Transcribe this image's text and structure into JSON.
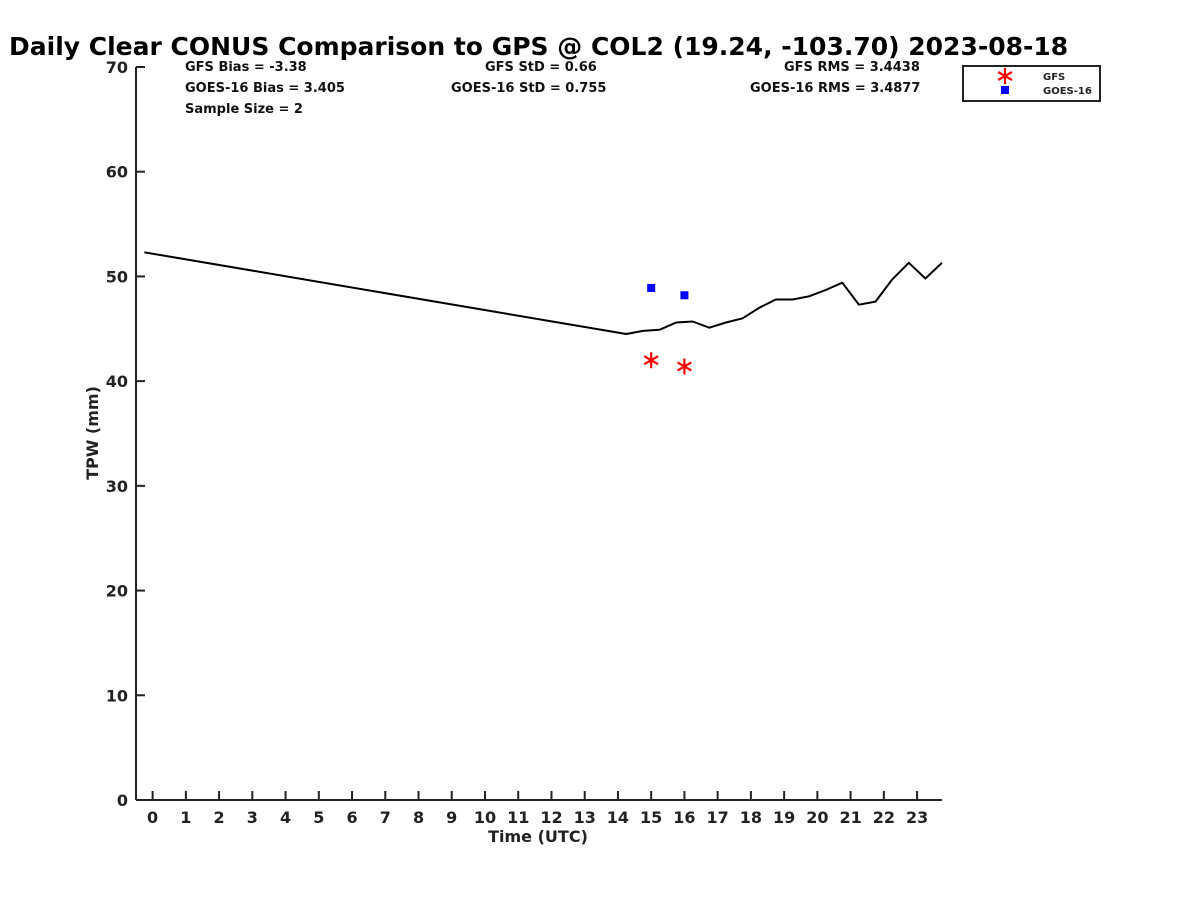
{
  "chart_data": {
    "type": "line",
    "title": "Daily Clear CONUS Comparison to GPS @ COL2 (19.24, -103.70) 2023-08-18",
    "xlabel": "Time (UTC)",
    "ylabel": "TPW (mm)",
    "xlim": [
      -0.5,
      23.75
    ],
    "ylim": [
      0,
      70
    ],
    "xticks": [
      "0",
      "1",
      "2",
      "3",
      "4",
      "5",
      "6",
      "7",
      "8",
      "9",
      "10",
      "11",
      "12",
      "13",
      "14",
      "15",
      "16",
      "17",
      "18",
      "19",
      "20",
      "21",
      "22",
      "23"
    ],
    "yticks": [
      "0",
      "10",
      "20",
      "30",
      "40",
      "50",
      "60",
      "70"
    ],
    "series": [
      {
        "name": "GPS",
        "style": "line",
        "color": "#000000",
        "x": [
          -0.25,
          14.25,
          14.75,
          15.25,
          15.75,
          16.25,
          16.75,
          17.25,
          17.75,
          18.25,
          18.75,
          19.25,
          19.75,
          20.25,
          20.75,
          21.25,
          21.75,
          22.25,
          22.75,
          23.25,
          23.75
        ],
        "y": [
          52.3,
          44.5,
          44.8,
          44.9,
          45.6,
          45.7,
          45.1,
          45.6,
          46.0,
          47.0,
          47.8,
          47.8,
          48.1,
          48.7,
          49.4,
          47.3,
          47.6,
          49.7,
          51.3,
          49.8,
          51.3
        ]
      },
      {
        "name": "GFS",
        "style": "star",
        "color": "#ff0000",
        "x": [
          15,
          16
        ],
        "y": [
          42.0,
          41.4
        ]
      },
      {
        "name": "GOES-16",
        "style": "square",
        "color": "#0000ff",
        "x": [
          15,
          16
        ],
        "y": [
          48.9,
          48.2
        ]
      }
    ],
    "stats": {
      "gfs_bias": "GFS Bias = -3.38",
      "goes_bias": "GOES-16 Bias = 3.405",
      "sample_size": "Sample Size = 2",
      "gfs_std": "GFS StD = 0.66",
      "goes_std": "GOES-16 StD = 0.755",
      "gfs_rms": "GFS RMS = 3.4438",
      "goes_rms": "GOES-16 RMS = 3.4877"
    },
    "legend": {
      "position": "top-right-outside",
      "entries": [
        "GFS",
        "GOES-16"
      ]
    }
  }
}
